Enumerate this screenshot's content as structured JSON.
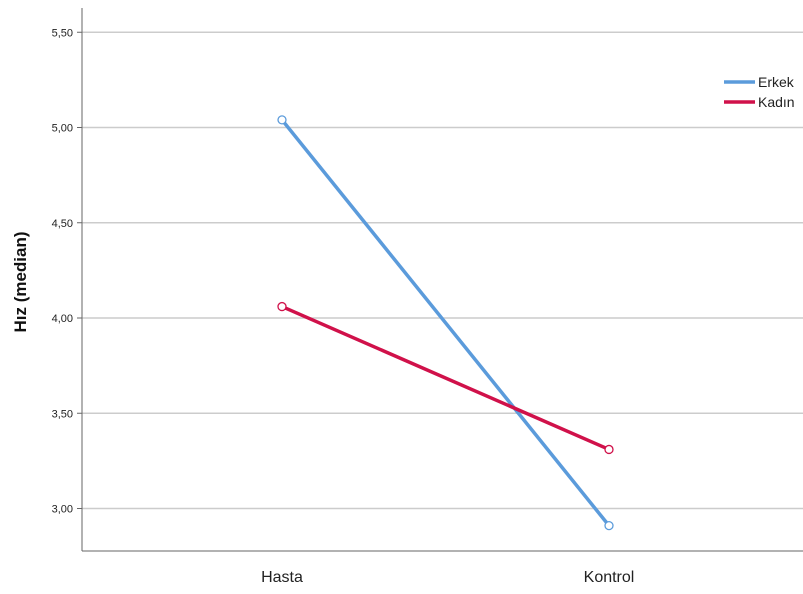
{
  "chart_data": {
    "type": "line",
    "categories": [
      "Hasta",
      "Kontrol"
    ],
    "series": [
      {
        "name": "Erkek",
        "values": [
          5.04,
          2.91
        ],
        "color": "#5B9BDB"
      },
      {
        "name": "Kadın",
        "values": [
          4.06,
          3.31
        ],
        "color": "#D0114A"
      }
    ],
    "ylabel": "Hız (median)",
    "xlabel": "",
    "ylim": [
      2.8,
      5.6
    ],
    "yticks": [
      3.0,
      3.5,
      4.0,
      4.5,
      5.0,
      5.5
    ],
    "ytick_labels": [
      "3,00",
      "3,50",
      "4,00",
      "4,50",
      "5,00",
      "5,50"
    ],
    "grid": true,
    "legend_position": "top-right"
  }
}
